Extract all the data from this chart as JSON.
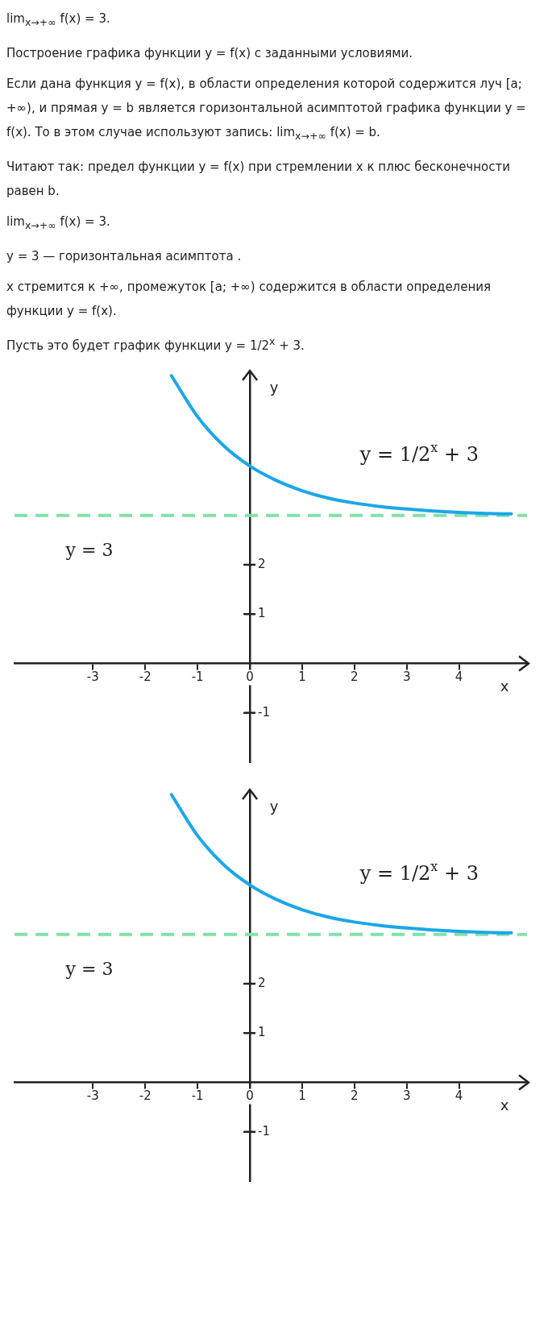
{
  "chart_data": [
    {
      "type": "line",
      "annotations": [
        "lim$_{x→+∞}$ f(x) = 3.",
        "Построение графика функции y = f(x) с заданными условиями.",
        "Если дана функция y = f(x), в области определения которой содержится луч [a; +∞), и прямая y = b является горизонтальной асимптотой графика функции y = f(x). То в этом случае используют запись: lim$_{x→+∞}$ f(x) = b.",
        "Читают так: предел функции y = f(x) при стремлении x к плюс бесконечности равен b.",
        "lim$_{x→+∞}$ f(x) = 3.",
        "y = 3 — горизонтальная асимптота .",
        "x стремится к +∞, промежуток [a; +∞) содержится в области определения функции y = f(x).",
        "Пусть это будет график функции y = 1/2$^{x}$ + 3."
      ],
      "xlabel": "x",
      "ylabel": "y",
      "x": [
        -1.5,
        -1,
        -0.5,
        0,
        0.5,
        1,
        1.5,
        2,
        2.5,
        3,
        3.5,
        4,
        4.5,
        5
      ],
      "series": [
        {
          "name": "y = 1/2$^{x}$ + 3",
          "color": "#1aa7e8",
          "values": [
            5.83,
            5,
            4.41,
            4,
            3.71,
            3.5,
            3.35,
            3.25,
            3.18,
            3.13,
            3.09,
            3.06,
            3.04,
            3.03
          ]
        }
      ],
      "ref_lines": [
        {
          "axis": "y",
          "value": 3,
          "label": "y = 3",
          "color": "#80e2a8",
          "line_style": "dashed"
        }
      ],
      "xlim": [
        -4.5,
        5.3
      ],
      "ylim": [
        -2,
        5.9
      ],
      "xticks": [
        -3,
        -2,
        -1,
        0,
        1,
        2,
        3,
        4
      ],
      "yticks": [
        -1,
        1,
        2
      ],
      "grid": false,
      "legend": false
    },
    {
      "type": "line",
      "xlabel": "x",
      "ylabel": "y",
      "x": [
        -1.5,
        -1,
        -0.5,
        0,
        0.5,
        1,
        1.5,
        2,
        2.5,
        3,
        3.5,
        4,
        4.5,
        5
      ],
      "series": [
        {
          "name": "y = 1/2$^{x}$ + 3",
          "color": "#1aa7e8",
          "values": [
            5.83,
            5,
            4.41,
            4,
            3.71,
            3.5,
            3.35,
            3.25,
            3.18,
            3.13,
            3.09,
            3.06,
            3.04,
            3.03
          ]
        }
      ],
      "ref_lines": [
        {
          "axis": "y",
          "value": 3,
          "label": "y = 3",
          "color": "#80e2a8",
          "line_style": "dashed"
        }
      ],
      "xlim": [
        -4.5,
        5.3
      ],
      "ylim": [
        -2,
        5.9
      ],
      "xticks": [
        -3,
        -2,
        -1,
        0,
        1,
        2,
        3,
        4
      ],
      "yticks": [
        -1,
        1,
        2
      ],
      "grid": false,
      "legend": false
    }
  ]
}
